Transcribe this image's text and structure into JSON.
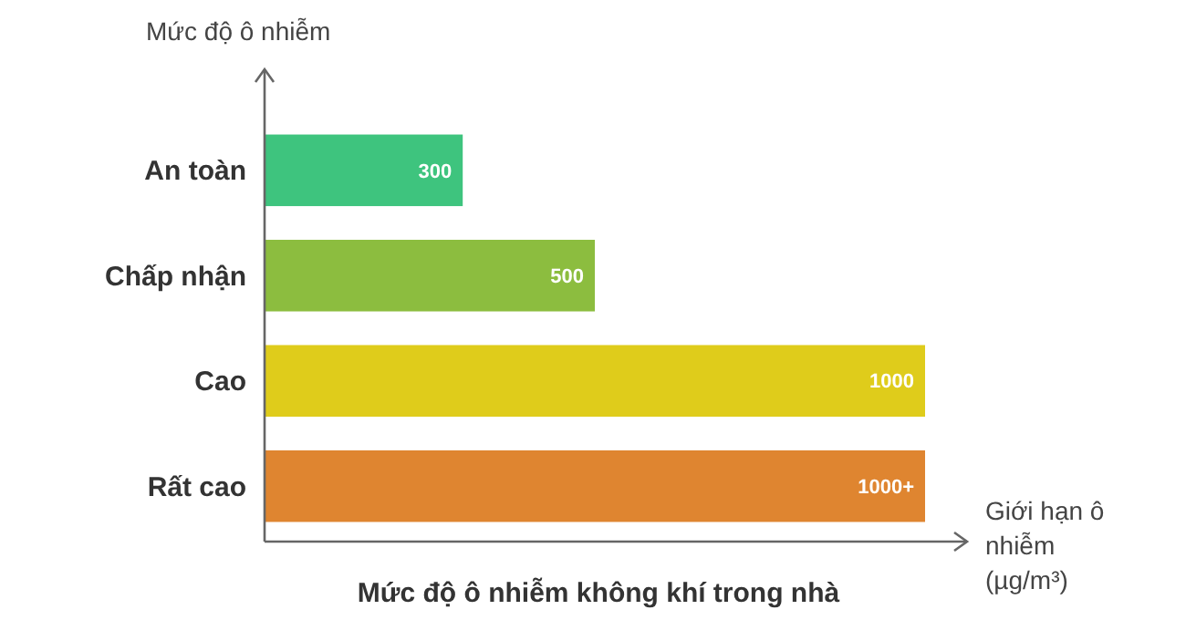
{
  "chart_data": {
    "type": "bar",
    "orientation": "horizontal",
    "title": "Mức độ ô nhiễm không khí trong nhà",
    "xlabel": "Giới hạn ô nhiễm (µg/m³)",
    "ylabel": "Mức độ ô nhiễm",
    "categories": [
      "An toàn",
      "Chấp nhận",
      "Cao",
      "Rất cao"
    ],
    "values": [
      300,
      500,
      1000,
      1000
    ],
    "colors": [
      "#3ec47e",
      "#8cbd3f",
      "#dfcc1b",
      "#df8530"
    ],
    "value_labels": [
      "300",
      "500",
      "1000",
      "1000+"
    ]
  }
}
